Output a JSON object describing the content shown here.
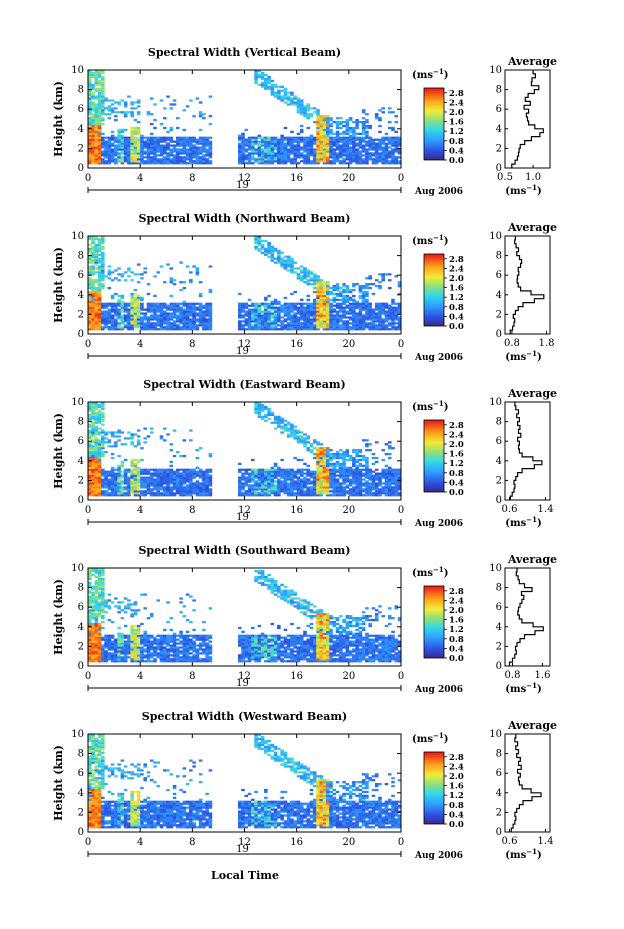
{
  "figure": {
    "xlabel": "Local Time",
    "date_label": "Aug 2006",
    "day_label": "19",
    "unit_label": "(ms",
    "unit_exp": "−1",
    "ylabel": "Height (km)",
    "avg_title": "Average",
    "avg_xlabel": "(ms",
    "avg_xlabel_exp": "−1"
  },
  "chart_data": [
    {
      "type": "heatmap",
      "title": "Spectral Width (Vertical Beam)",
      "xlabel": "Local Time",
      "ylabel": "Height (km)",
      "x_ticks": [
        "0",
        "4",
        "8",
        "12",
        "16",
        "20",
        "0"
      ],
      "y_ticks": [
        "0",
        "2",
        "4",
        "6",
        "8",
        "10"
      ],
      "xlim": [
        0,
        24
      ],
      "ylim": [
        0,
        10
      ],
      "colorbar": {
        "label": "(ms−1)",
        "ticks": [
          "0.0",
          "0.4",
          "0.8",
          "1.2",
          "1.6",
          "2.0",
          "2.4",
          "2.8"
        ],
        "range": [
          0,
          3.0
        ]
      },
      "average_profile": {
        "title": "Average",
        "xlabel": "(ms−1)",
        "x_ticks": [
          "0.5",
          "1.0"
        ],
        "xlim": [
          0.5,
          1.3
        ],
        "height": [
          0.2,
          0.6,
          1.0,
          1.4,
          1.8,
          2.2,
          2.6,
          3.0,
          3.4,
          3.8,
          4.2,
          4.6,
          5.0,
          5.4,
          5.8,
          6.2,
          6.6,
          7.0,
          7.4,
          7.8,
          8.2,
          8.6,
          9.0,
          9.4,
          9.8
        ],
        "value": [
          0.62,
          0.68,
          0.72,
          0.74,
          0.75,
          0.77,
          0.85,
          0.97,
          1.12,
          1.18,
          1.03,
          0.92,
          0.9,
          0.88,
          0.92,
          0.84,
          0.95,
          0.86,
          0.91,
          1.02,
          1.1,
          0.97,
          0.98,
          1.04,
          1.0
        ]
      }
    },
    {
      "type": "heatmap",
      "title": "Spectral Width (Northward Beam)",
      "xlabel": "Local Time",
      "ylabel": "Height (km)",
      "x_ticks": [
        "0",
        "4",
        "8",
        "12",
        "16",
        "20",
        "0"
      ],
      "y_ticks": [
        "0",
        "2",
        "4",
        "6",
        "8",
        "10"
      ],
      "xlim": [
        0,
        24
      ],
      "ylim": [
        0,
        10
      ],
      "colorbar": {
        "label": "(ms−1)",
        "ticks": [
          "0.0",
          "0.4",
          "0.8",
          "1.2",
          "1.6",
          "2.0",
          "2.4",
          "2.8"
        ],
        "range": [
          0,
          3.0
        ]
      },
      "average_profile": {
        "title": "Average",
        "xlabel": "(ms−1)",
        "x_ticks": [
          "0.8",
          "1.8"
        ],
        "xlim": [
          0.6,
          1.9
        ],
        "height": [
          0.2,
          0.6,
          1.0,
          1.4,
          1.8,
          2.2,
          2.6,
          3.0,
          3.4,
          3.8,
          4.2,
          4.6,
          5.0,
          5.4,
          5.8,
          6.2,
          6.6,
          7.0,
          7.4,
          7.8,
          8.2,
          8.6,
          9.0,
          9.4,
          9.8
        ],
        "value": [
          0.75,
          0.82,
          0.86,
          0.88,
          0.84,
          0.9,
          0.98,
          1.12,
          1.45,
          1.72,
          1.35,
          1.05,
          0.98,
          0.95,
          0.96,
          1.0,
          0.98,
          1.05,
          1.08,
          1.02,
          0.94,
          0.99,
          0.92,
          0.88,
          0.9
        ]
      }
    },
    {
      "type": "heatmap",
      "title": "Spectral Width (Eastward Beam)",
      "xlabel": "Local Time",
      "ylabel": "Height (km)",
      "x_ticks": [
        "0",
        "4",
        "8",
        "12",
        "16",
        "20",
        "0"
      ],
      "y_ticks": [
        "0",
        "2",
        "4",
        "6",
        "8",
        "10"
      ],
      "xlim": [
        0,
        24
      ],
      "ylim": [
        0,
        10
      ],
      "colorbar": {
        "label": "(ms−1)",
        "ticks": [
          "0.0",
          "0.4",
          "0.8",
          "1.2",
          "1.6",
          "2.0",
          "2.4",
          "2.8"
        ],
        "range": [
          0,
          3.0
        ]
      },
      "average_profile": {
        "title": "Average",
        "xlabel": "(ms−1)",
        "x_ticks": [
          "0.6",
          "1.4"
        ],
        "xlim": [
          0.5,
          1.5
        ],
        "height": [
          0.2,
          0.6,
          1.0,
          1.4,
          1.8,
          2.2,
          2.6,
          3.0,
          3.4,
          3.8,
          4.2,
          4.6,
          5.0,
          5.4,
          5.8,
          6.2,
          6.6,
          7.0,
          7.4,
          7.8,
          8.2,
          8.6,
          9.0,
          9.4,
          9.8
        ],
        "value": [
          0.62,
          0.66,
          0.7,
          0.72,
          0.7,
          0.74,
          0.78,
          0.88,
          1.15,
          1.32,
          1.12,
          0.88,
          0.82,
          0.8,
          0.82,
          0.78,
          0.85,
          0.8,
          0.83,
          0.78,
          0.82,
          0.76,
          0.8,
          0.74,
          0.72
        ]
      }
    },
    {
      "type": "heatmap",
      "title": "Spectral Width (Southward Beam)",
      "xlabel": "Local Time",
      "ylabel": "Height (km)",
      "x_ticks": [
        "0",
        "4",
        "8",
        "12",
        "16",
        "20",
        "0"
      ],
      "y_ticks": [
        "0",
        "2",
        "4",
        "6",
        "8",
        "10"
      ],
      "xlim": [
        0,
        24
      ],
      "ylim": [
        0,
        10
      ],
      "colorbar": {
        "label": "(ms−1)",
        "ticks": [
          "0.0",
          "0.4",
          "0.8",
          "1.2",
          "1.6",
          "2.0",
          "2.4",
          "2.8"
        ],
        "range": [
          0,
          3.0
        ]
      },
      "average_profile": {
        "title": "Average",
        "xlabel": "(ms−1)",
        "x_ticks": [
          "0.8",
          "1.6"
        ],
        "xlim": [
          0.6,
          1.8
        ],
        "height": [
          0.2,
          0.6,
          1.0,
          1.4,
          1.8,
          2.2,
          2.6,
          3.0,
          3.4,
          3.8,
          4.2,
          4.6,
          5.0,
          5.4,
          5.8,
          6.2,
          6.6,
          7.0,
          7.4,
          7.8,
          8.2,
          8.6,
          9.0,
          9.4,
          9.8
        ],
        "value": [
          0.72,
          0.8,
          0.86,
          0.9,
          0.88,
          0.92,
          1.0,
          1.12,
          1.4,
          1.62,
          1.35,
          1.05,
          0.98,
          0.94,
          0.96,
          1.0,
          1.05,
          1.1,
          1.04,
          1.32,
          1.12,
          0.98,
          0.95,
          0.9,
          0.92
        ]
      }
    },
    {
      "type": "heatmap",
      "title": "Spectral Width (Westward Beam)",
      "xlabel": "Local Time",
      "ylabel": "Height (km)",
      "x_ticks": [
        "0",
        "4",
        "8",
        "12",
        "16",
        "20",
        "0"
      ],
      "y_ticks": [
        "0",
        "2",
        "4",
        "6",
        "8",
        "10"
      ],
      "xlim": [
        0,
        24
      ],
      "ylim": [
        0,
        10
      ],
      "colorbar": {
        "label": "(ms−1)",
        "ticks": [
          "0.0",
          "0.4",
          "0.8",
          "1.2",
          "1.6",
          "2.0",
          "2.4",
          "2.8"
        ],
        "range": [
          0,
          3.0
        ]
      },
      "average_profile": {
        "title": "Average",
        "xlabel": "(ms−1)",
        "x_ticks": [
          "0.6",
          "1.4"
        ],
        "xlim": [
          0.5,
          1.5
        ],
        "height": [
          0.2,
          0.6,
          1.0,
          1.4,
          1.8,
          2.2,
          2.6,
          3.0,
          3.4,
          3.8,
          4.2,
          4.6,
          5.0,
          5.4,
          5.8,
          6.2,
          6.6,
          7.0,
          7.4,
          7.8,
          8.2,
          8.6,
          9.0,
          9.4,
          9.8
        ],
        "value": [
          0.64,
          0.68,
          0.72,
          0.74,
          0.72,
          0.76,
          0.82,
          0.9,
          1.1,
          1.3,
          1.08,
          0.88,
          0.82,
          0.8,
          0.84,
          0.78,
          0.86,
          0.8,
          0.84,
          0.76,
          0.8,
          0.74,
          0.78,
          0.72,
          0.74
        ]
      }
    }
  ]
}
